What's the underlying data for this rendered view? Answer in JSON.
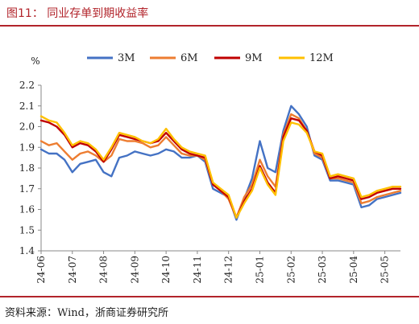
{
  "figure": {
    "title": "图11：  同业存单到期收益率",
    "source": "资料来源：Wind，浙商证券研究所"
  },
  "chart_data": {
    "type": "line",
    "ylabel": "%",
    "ylim": [
      1.4,
      2.2
    ],
    "yticks": [
      "1.4",
      "1.5",
      "1.6",
      "1.7",
      "1.8",
      "1.9",
      "2.0",
      "2.1",
      "2.2"
    ],
    "categories": [
      "24-06",
      "24-07",
      "24-08",
      "24-09",
      "24-10",
      "24-11",
      "24-12",
      "25-01",
      "25-02",
      "25-03",
      "25-04",
      "25-05"
    ],
    "x": [
      0,
      0.25,
      0.5,
      0.75,
      1,
      1.25,
      1.5,
      1.75,
      2,
      2.25,
      2.5,
      2.75,
      3,
      3.25,
      3.5,
      3.75,
      4,
      4.25,
      4.5,
      4.75,
      5,
      5.25,
      5.5,
      5.75,
      6,
      6.25,
      6.5,
      6.75,
      7,
      7.25,
      7.5,
      7.75,
      8,
      8.25,
      8.5,
      8.75,
      9,
      9.25,
      9.5,
      9.75,
      10,
      10.25,
      10.5,
      10.75,
      11,
      11.25,
      11.5
    ],
    "legend_position": "top",
    "grid": false,
    "series": [
      {
        "name": "3M",
        "color": "#4472c4",
        "values": [
          1.89,
          1.87,
          1.87,
          1.84,
          1.78,
          1.82,
          1.83,
          1.84,
          1.78,
          1.76,
          1.85,
          1.86,
          1.88,
          1.87,
          1.86,
          1.87,
          1.89,
          1.88,
          1.85,
          1.85,
          1.86,
          1.83,
          1.7,
          1.68,
          1.66,
          1.55,
          1.65,
          1.75,
          1.93,
          1.8,
          1.78,
          1.98,
          2.1,
          2.06,
          2.0,
          1.86,
          1.84,
          1.74,
          1.74,
          1.73,
          1.72,
          1.61,
          1.62,
          1.65,
          1.66,
          1.67,
          1.68
        ]
      },
      {
        "name": "6M",
        "color": "#ed7d31",
        "values": [
          1.93,
          1.91,
          1.92,
          1.88,
          1.84,
          1.87,
          1.88,
          1.86,
          1.83,
          1.86,
          1.94,
          1.93,
          1.93,
          1.92,
          1.9,
          1.91,
          1.95,
          1.91,
          1.87,
          1.86,
          1.86,
          1.84,
          1.72,
          1.69,
          1.65,
          1.56,
          1.66,
          1.72,
          1.84,
          1.76,
          1.71,
          1.96,
          2.06,
          2.04,
          1.98,
          1.87,
          1.85,
          1.75,
          1.75,
          1.74,
          1.73,
          1.63,
          1.64,
          1.66,
          1.67,
          1.68,
          1.69
        ]
      },
      {
        "name": "9M",
        "color": "#c00000",
        "values": [
          2.03,
          2.02,
          2.0,
          1.96,
          1.9,
          1.92,
          1.91,
          1.88,
          1.83,
          1.89,
          1.96,
          1.95,
          1.94,
          1.93,
          1.92,
          1.93,
          1.97,
          1.93,
          1.89,
          1.87,
          1.86,
          1.85,
          1.72,
          1.69,
          1.66,
          1.56,
          1.64,
          1.7,
          1.81,
          1.73,
          1.68,
          1.95,
          2.04,
          2.03,
          1.98,
          1.88,
          1.86,
          1.75,
          1.76,
          1.75,
          1.74,
          1.65,
          1.66,
          1.68,
          1.69,
          1.7,
          1.7
        ]
      },
      {
        "name": "12M",
        "color": "#ffc000",
        "values": [
          2.05,
          2.03,
          2.02,
          1.97,
          1.91,
          1.93,
          1.92,
          1.89,
          1.84,
          1.9,
          1.97,
          1.96,
          1.95,
          1.93,
          1.92,
          1.94,
          1.99,
          1.94,
          1.9,
          1.88,
          1.87,
          1.86,
          1.73,
          1.7,
          1.67,
          1.56,
          1.63,
          1.69,
          1.8,
          1.72,
          1.67,
          1.93,
          2.02,
          2.01,
          1.97,
          1.88,
          1.87,
          1.76,
          1.77,
          1.76,
          1.75,
          1.66,
          1.67,
          1.69,
          1.7,
          1.71,
          1.71
        ]
      }
    ]
  }
}
